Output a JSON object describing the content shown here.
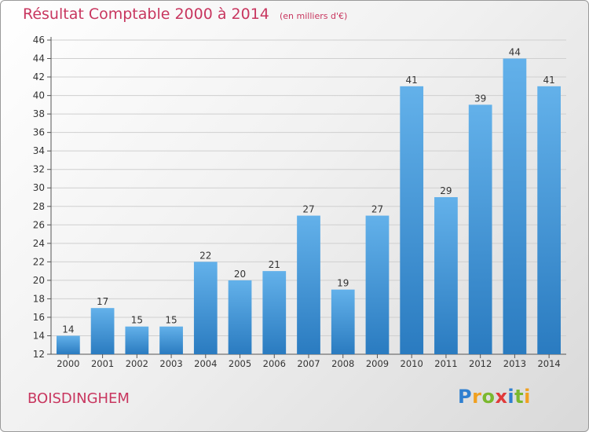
{
  "title": "Résultat Comptable 2000 à 2014",
  "subtitle": "(en milliers d'€)",
  "place_name": "BOISDINGHEM",
  "logo": {
    "letters": [
      "P",
      "r",
      "o",
      "x",
      "i",
      "t",
      "i"
    ],
    "colors": [
      "#2f7fd0",
      "#f0a020",
      "#7ab82e",
      "#e03a3a",
      "#2f7fd0",
      "#7ab82e",
      "#f0a020"
    ]
  },
  "colors": {
    "bar_light": "#63b1ea",
    "bar_dark": "#2a7bc0",
    "title": "#c8365f"
  },
  "chart_data": {
    "type": "bar",
    "categories": [
      "2000",
      "2001",
      "2002",
      "2003",
      "2004",
      "2005",
      "2006",
      "2007",
      "2008",
      "2009",
      "2010",
      "2011",
      "2012",
      "2013",
      "2014"
    ],
    "values": [
      14,
      17,
      15,
      15,
      22,
      20,
      21,
      27,
      19,
      27,
      41,
      29,
      39,
      44,
      41
    ],
    "data_labels": [
      "14",
      "17",
      "15",
      "15",
      "22",
      "20",
      "21",
      "27",
      "19",
      "27",
      "41",
      "29",
      "39",
      "44",
      "41"
    ],
    "yticks": [
      "12",
      "14",
      "16",
      "18",
      "20",
      "22",
      "24",
      "26",
      "28",
      "30",
      "32",
      "34",
      "36",
      "38",
      "40",
      "42",
      "44",
      "46"
    ],
    "ylim": [
      12,
      46
    ],
    "grid": true
  }
}
